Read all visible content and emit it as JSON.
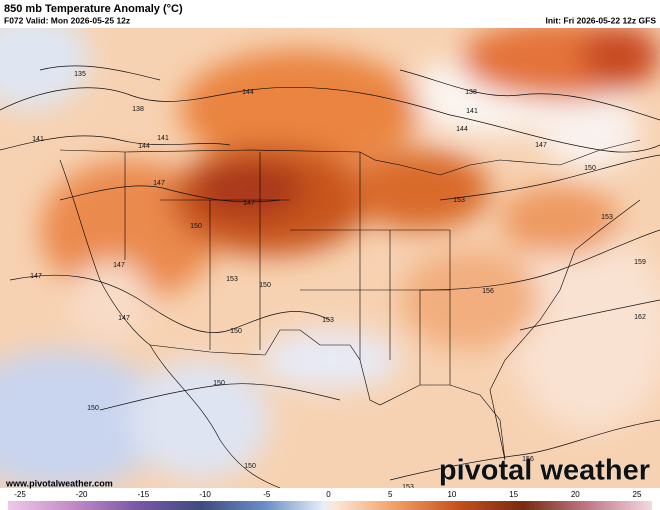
{
  "header": {
    "title": "850 mb Temperature Anomaly (°C)",
    "valid": "F072 Valid: Mon 2026-05-25 12z",
    "init": "Init: Fri 2026-05-22 12z GFS"
  },
  "footer": {
    "url": "www.pivotalweather.com",
    "logo": "pivotal weather"
  },
  "colorbar": {
    "ticks": [
      -25,
      -20,
      -15,
      -10,
      -5,
      0,
      5,
      10,
      15,
      20,
      25
    ]
  },
  "contour_labels": [
    135,
    138,
    141,
    141,
    144,
    144,
    138,
    141,
    144,
    147,
    147,
    147,
    150,
    147,
    147,
    147,
    150,
    153,
    150,
    153,
    156,
    153,
    153,
    150,
    159,
    162,
    150,
    150,
    150,
    153,
    156
  ]
}
